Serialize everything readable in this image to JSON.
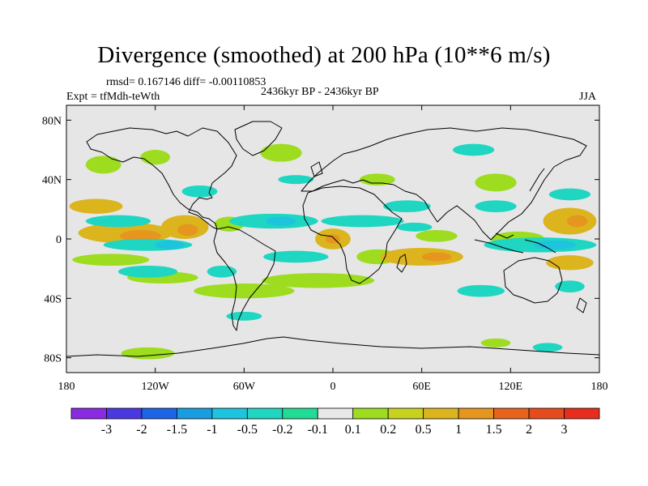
{
  "chart_data": {
    "type": "heatmap",
    "title": "Divergence (smoothed) at 200 hPa (10**6 m/s)",
    "stats": "rmsd= 0.167146 diff= -0.00110853",
    "experiment": "Expt = tfMdh-teWth",
    "period": "2436kyr BP - 2436kyr BP",
    "season": "JJA",
    "x_axis": {
      "range": [
        -180,
        180
      ],
      "ticks": [
        -180,
        -120,
        -60,
        0,
        60,
        120,
        180
      ],
      "tick_labels": [
        "180",
        "120W",
        "60W",
        "0",
        "60E",
        "120E",
        "180"
      ]
    },
    "y_axis": {
      "range": [
        -90,
        90
      ],
      "ticks": [
        80,
        40,
        0,
        -40,
        -80
      ],
      "tick_labels": [
        "80N",
        "40N",
        "0",
        "40S",
        "80S"
      ]
    },
    "colorbar": {
      "levels": [
        "-3",
        "-2",
        "-1.5",
        "-1",
        "-0.5",
        "-0.2",
        "-0.1",
        "0.1",
        "0.2",
        "0.5",
        "1",
        "1.5",
        "2",
        "3"
      ],
      "colors": [
        "#8a2be2",
        "#4b38e0",
        "#1e64e6",
        "#1a9ce0",
        "#1ec3dd",
        "#1ed6c2",
        "#22dc96",
        "#e8e8e8",
        "#9ddc1e",
        "#c8d21e",
        "#dcb41e",
        "#e6961e",
        "#e6641e",
        "#e64b1e",
        "#e62d1e"
      ]
    },
    "regions": [
      {
        "name": "pos-tropical-east-pacific",
        "lon": -160,
        "lat": 22,
        "rx": 18,
        "ry": 5,
        "level": 1
      },
      {
        "name": "pos-central-pacific-tropics",
        "lon": -140,
        "lat": 4,
        "rx": 32,
        "ry": 7,
        "level": 1
      },
      {
        "name": "pos-central-pacific-core",
        "lon": -130,
        "lat": 2,
        "rx": 14,
        "ry": 4,
        "level": 2
      },
      {
        "name": "pos-east-pacific-tropics",
        "lon": -100,
        "lat": 8,
        "rx": 16,
        "ry": 8,
        "level": 1
      },
      {
        "name": "pos-east-pacific-core",
        "lon": -98,
        "lat": 6,
        "rx": 7,
        "ry": 4,
        "level": 2
      },
      {
        "name": "pos-caribbean",
        "lon": -70,
        "lat": 10,
        "rx": 10,
        "ry": 5,
        "level": 0
      },
      {
        "name": "pos-south-pacific-band",
        "lon": -150,
        "lat": -14,
        "rx": 26,
        "ry": 4,
        "level": 0
      },
      {
        "name": "pos-south-pacific-east",
        "lon": -115,
        "lat": -26,
        "rx": 24,
        "ry": 4,
        "level": 0
      },
      {
        "name": "pos-south-america-south",
        "lon": -60,
        "lat": -35,
        "rx": 34,
        "ry": 5,
        "level": 0
      },
      {
        "name": "pos-south-atlantic",
        "lon": -10,
        "lat": -28,
        "rx": 38,
        "ry": 5,
        "level": 0
      },
      {
        "name": "pos-west-africa-core",
        "lon": 0,
        "lat": 0,
        "rx": 12,
        "ry": 7,
        "level": 1
      },
      {
        "name": "pos-west-africa-inner",
        "lon": 0,
        "lat": 0,
        "rx": 5,
        "ry": 3,
        "level": 2
      },
      {
        "name": "pos-africa-south",
        "lon": 30,
        "lat": -12,
        "rx": 14,
        "ry": 5,
        "level": 0
      },
      {
        "name": "pos-indian-ocean-south",
        "lon": 60,
        "lat": -12,
        "rx": 28,
        "ry": 6,
        "level": 1
      },
      {
        "name": "pos-indian-ocean-core",
        "lon": 70,
        "lat": -12,
        "rx": 10,
        "ry": 3,
        "level": 2
      },
      {
        "name": "pos-indian-ocean-north",
        "lon": 70,
        "lat": 2,
        "rx": 14,
        "ry": 4,
        "level": 0
      },
      {
        "name": "pos-maritime-continent",
        "lon": 125,
        "lat": 0,
        "rx": 18,
        "ry": 5,
        "level": 0
      },
      {
        "name": "pos-west-pacific-north",
        "lon": 160,
        "lat": 12,
        "rx": 18,
        "ry": 9,
        "level": 1
      },
      {
        "name": "pos-west-pacific-core",
        "lon": 165,
        "lat": 12,
        "rx": 7,
        "ry": 4,
        "level": 2
      },
      {
        "name": "pos-south-west-pacific",
        "lon": 160,
        "lat": -16,
        "rx": 16,
        "ry": 5,
        "level": 1
      },
      {
        "name": "pos-north-america-west",
        "lon": -155,
        "lat": 50,
        "rx": 12,
        "ry": 6,
        "level": 0
      },
      {
        "name": "pos-gulf-alaska",
        "lon": -120,
        "lat": 55,
        "rx": 10,
        "ry": 5,
        "level": 0
      },
      {
        "name": "pos-north-atlantic",
        "lon": -35,
        "lat": 58,
        "rx": 14,
        "ry": 6,
        "level": 0
      },
      {
        "name": "pos-asia-east",
        "lon": 110,
        "lat": 38,
        "rx": 14,
        "ry": 6,
        "level": 0
      },
      {
        "name": "pos-europe",
        "lon": 30,
        "lat": 40,
        "rx": 12,
        "ry": 4,
        "level": 0
      },
      {
        "name": "pos-antarctic-pacific",
        "lon": -125,
        "lat": -77,
        "rx": 18,
        "ry": 4,
        "level": 0
      },
      {
        "name": "pos-antarctic-indian",
        "lon": 110,
        "lat": -70,
        "rx": 10,
        "ry": 3,
        "level": 0
      },
      {
        "name": "neg-north-pacific-band",
        "lon": -145,
        "lat": 12,
        "rx": 22,
        "ry": 4,
        "level": 0
      },
      {
        "name": "neg-east-pacific-equator",
        "lon": -125,
        "lat": -4,
        "rx": 30,
        "ry": 4,
        "level": 0
      },
      {
        "name": "neg-east-pacific-core",
        "lon": -110,
        "lat": -4,
        "rx": 10,
        "ry": 3,
        "level": 1
      },
      {
        "name": "neg-south-pacific",
        "lon": -125,
        "lat": -22,
        "rx": 20,
        "ry": 4,
        "level": 0
      },
      {
        "name": "neg-atlantic-north",
        "lon": -40,
        "lat": 12,
        "rx": 30,
        "ry": 5,
        "level": 0
      },
      {
        "name": "neg-atlantic-core",
        "lon": -35,
        "lat": 12,
        "rx": 10,
        "ry": 3,
        "level": 1
      },
      {
        "name": "neg-atlantic-south",
        "lon": -25,
        "lat": -12,
        "rx": 22,
        "ry": 4,
        "level": 0
      },
      {
        "name": "neg-north-africa",
        "lon": 20,
        "lat": 12,
        "rx": 28,
        "ry": 4,
        "level": 0
      },
      {
        "name": "neg-arabia",
        "lon": 50,
        "lat": 22,
        "rx": 16,
        "ry": 4,
        "level": 0
      },
      {
        "name": "neg-indian-ocean",
        "lon": 55,
        "lat": 8,
        "rx": 12,
        "ry": 3,
        "level": 0
      },
      {
        "name": "neg-west-pacific-equator",
        "lon": 140,
        "lat": -4,
        "rx": 38,
        "ry": 5,
        "level": 0
      },
      {
        "name": "neg-west-pacific-core",
        "lon": 150,
        "lat": -4,
        "rx": 14,
        "ry": 3,
        "level": 1
      },
      {
        "name": "neg-east-asia",
        "lon": 110,
        "lat": 22,
        "rx": 14,
        "ry": 4,
        "level": 0
      },
      {
        "name": "neg-north-pacific-west",
        "lon": 160,
        "lat": 30,
        "rx": 14,
        "ry": 4,
        "level": 0
      },
      {
        "name": "neg-north-atlantic",
        "lon": -25,
        "lat": 40,
        "rx": 12,
        "ry": 3,
        "level": 0
      },
      {
        "name": "neg-arctic",
        "lon": 95,
        "lat": 60,
        "rx": 14,
        "ry": 4,
        "level": 0
      },
      {
        "name": "neg-north-america",
        "lon": -90,
        "lat": 32,
        "rx": 12,
        "ry": 4,
        "level": 0
      },
      {
        "name": "neg-south-america",
        "lon": -75,
        "lat": -22,
        "rx": 10,
        "ry": 4,
        "level": 0
      },
      {
        "name": "neg-south-indian",
        "lon": 100,
        "lat": -35,
        "rx": 16,
        "ry": 4,
        "level": 0
      },
      {
        "name": "neg-south-pacific-west",
        "lon": 160,
        "lat": -32,
        "rx": 10,
        "ry": 4,
        "level": 0
      },
      {
        "name": "neg-south-atlantic-subpolar",
        "lon": -60,
        "lat": -52,
        "rx": 12,
        "ry": 3,
        "level": 0
      },
      {
        "name": "neg-antarctic",
        "lon": 145,
        "lat": -73,
        "rx": 10,
        "ry": 3,
        "level": 0
      }
    ]
  }
}
